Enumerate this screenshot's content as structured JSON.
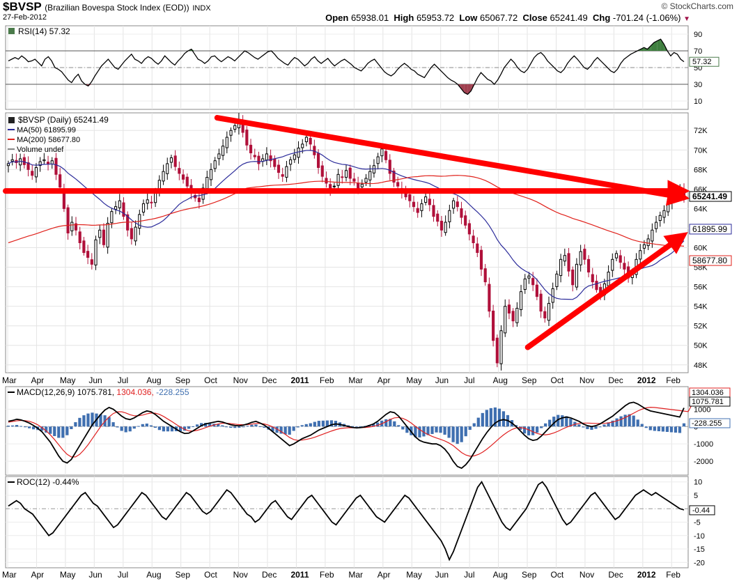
{
  "header": {
    "symbol": "$BVSP",
    "description": "(Brazilian Bovespa Stock Index (EOD))",
    "exchange": "INDX",
    "date": "27-Feb-2012",
    "brand": "© StockCharts.com",
    "open_label": "Open",
    "open": "65938.01",
    "high_label": "High",
    "high": "65953.72",
    "low_label": "Low",
    "low": "65067.72",
    "close_label": "Close",
    "close": "65241.49",
    "chg_label": "Chg",
    "chg": "-701.24 (-1.06%)"
  },
  "colors": {
    "candle_up": "#000000",
    "candle_down": "#b0103a",
    "ma50": "#2b2b9a",
    "ma200": "#e0201a",
    "annotation": "#ff0000",
    "macd_line": "#000000",
    "signal_line": "#e02020",
    "histogram": "#3f6fb0",
    "rsi_overbought_fill": "#3f7f3f",
    "rsi_oversold_fill": "#a04050"
  },
  "chart_data": [
    {
      "type": "line",
      "panel": "rsi",
      "label": "RSI(14) 57.32",
      "current_label": "57.32",
      "y_ticks": [
        "90",
        "70",
        "50",
        "30",
        "10"
      ],
      "ylim": [
        0,
        100
      ],
      "reference_lines": [
        70,
        50,
        30
      ],
      "series": [
        {
          "values": [
            58,
            60,
            62,
            60,
            64,
            61,
            57,
            58,
            60,
            56,
            52,
            60,
            63,
            58,
            50,
            48,
            45,
            40,
            35,
            32,
            38,
            42,
            34,
            30,
            28,
            33,
            40,
            46,
            52,
            56,
            60,
            55,
            50,
            48,
            53,
            58,
            62,
            66,
            60,
            58,
            55,
            60,
            63,
            61,
            57,
            54,
            58,
            64,
            60,
            56,
            53,
            58,
            62,
            67,
            70,
            72,
            66,
            60,
            58,
            55,
            58,
            63,
            64,
            60,
            57,
            60,
            63,
            61,
            58,
            62,
            66,
            70,
            68,
            65,
            62,
            60,
            63,
            66,
            69,
            70,
            66,
            61,
            58,
            55,
            53,
            58,
            62,
            60,
            56,
            52,
            55,
            60,
            63,
            58,
            55,
            58,
            61,
            56,
            52,
            55,
            58,
            60,
            57,
            54,
            50,
            48,
            46,
            50,
            55,
            58,
            60,
            55,
            50,
            45,
            42,
            40,
            43,
            48,
            52,
            55,
            52,
            48,
            46,
            42,
            40,
            38,
            44,
            50,
            54,
            50,
            46,
            42,
            38,
            35,
            33,
            30,
            25,
            20,
            18,
            22,
            30,
            38,
            44,
            40,
            36,
            34,
            30,
            35,
            42,
            50,
            55,
            60,
            56,
            50,
            46,
            44,
            48,
            55,
            62,
            66,
            68,
            64,
            58,
            54,
            50,
            46,
            44,
            48,
            55,
            60,
            64,
            60,
            55,
            50,
            48,
            52,
            58,
            62,
            58,
            54,
            50,
            46,
            44,
            48,
            55,
            60,
            63,
            66,
            68,
            70,
            72,
            74,
            72,
            76,
            80,
            82,
            84,
            78,
            70,
            64,
            68,
            66,
            60,
            57
          ]
        }
      ]
    },
    {
      "type": "candlestick",
      "panel": "price",
      "label": "$BVSP (Daily) 65241.49",
      "y_ticks": [
        "72K",
        "70K",
        "68K",
        "66K",
        "64K",
        "62K",
        "60K",
        "58K",
        "56K",
        "54K",
        "52K",
        "50K",
        "48K"
      ],
      "ylim": [
        47200,
        73800
      ],
      "x_ticks": [
        "Mar",
        "Apr",
        "May",
        "Jun",
        "Jul",
        "Aug",
        "Sep",
        "Oct",
        "Nov",
        "Dec",
        "2011",
        "Feb",
        "Mar",
        "Apr",
        "May",
        "Jun",
        "Jul",
        "Aug",
        "Sep",
        "Oct",
        "Nov",
        "Dec",
        "2012",
        "Feb"
      ],
      "x_ticks_bold": [
        "2011",
        "2012"
      ],
      "legend": [
        {
          "name": "MA(50) 61895.99",
          "color_key": "ma50"
        },
        {
          "name": "MA(200) 58677.80",
          "color_key": "ma200"
        },
        {
          "name": "Volume undef",
          "color_key": "volume"
        }
      ],
      "right_labels": [
        {
          "text": "65241.49",
          "value": 65241.49,
          "bold": true,
          "color_key": "candle_up"
        },
        {
          "text": "61895.99",
          "value": 61895.99,
          "bold": false,
          "color_key": "ma50"
        },
        {
          "text": "58677.80",
          "value": 58677.8,
          "bold": false,
          "color_key": "ma200"
        }
      ],
      "close": [
        68600,
        69000,
        68700,
        69100,
        68500,
        68000,
        67400,
        68200,
        68800,
        69000,
        68600,
        68900,
        67500,
        66200,
        64000,
        61500,
        62600,
        61800,
        60500,
        59500,
        59000,
        58300,
        60800,
        61800,
        60300,
        62500,
        63700,
        64200,
        64800,
        63200,
        61800,
        60900,
        62100,
        63400,
        64500,
        64900,
        64600,
        65700,
        66900,
        67800,
        68600,
        69200,
        68300,
        67600,
        67000,
        66300,
        65600,
        65100,
        64700,
        66100,
        67200,
        68000,
        68900,
        69600,
        70400,
        71300,
        72000,
        72500,
        73100,
        71800,
        70500,
        69700,
        69300,
        68600,
        69100,
        69600,
        68900,
        68300,
        67700,
        67300,
        68300,
        69000,
        69500,
        70200,
        70600,
        71300,
        70600,
        69500,
        68200,
        67300,
        66600,
        66000,
        66300,
        67500,
        67200,
        67900,
        67100,
        66800,
        66100,
        66500,
        67100,
        67800,
        68400,
        69300,
        70100,
        69000,
        67600,
        66700,
        66300,
        65700,
        65200,
        64800,
        64200,
        63600,
        64500,
        65200,
        64400,
        63200,
        62700,
        61800,
        62600,
        63800,
        64800,
        64200,
        63100,
        62300,
        61400,
        60500,
        59500,
        57800,
        56500,
        53500,
        50500,
        48200,
        51500,
        54000,
        53300,
        52500,
        53800,
        55500,
        56800,
        57100,
        56200,
        55000,
        53500,
        52800,
        54300,
        55800,
        57300,
        58800,
        59200,
        57600,
        56200,
        58300,
        59600,
        58800,
        57500,
        56500,
        55700,
        55300,
        56300,
        57500,
        58800,
        59400,
        58500,
        57800,
        56900,
        57500,
        58800,
        59700,
        60300,
        60900,
        61800,
        62600,
        63300,
        63800,
        64400,
        65100,
        65700,
        65900,
        65241
      ]
    },
    {
      "type": "line",
      "panel": "macd",
      "label": "MACD(12,26,9)",
      "values_text": {
        "macd": "1075.781",
        "signal": "1304.036",
        "hist": "-228.255"
      },
      "right_labels": [
        "1304.036",
        "1075.781",
        "-228.255"
      ],
      "y_ticks": [
        "1000",
        "0",
        "-1000",
        "-2000"
      ],
      "ylim": [
        -2800,
        2300
      ],
      "series": [
        {
          "name": "MACD",
          "color_key": "macd_line",
          "values": [
            300,
            350,
            420,
            380,
            300,
            200,
            60,
            -100,
            -300,
            -600,
            -900,
            -1300,
            -1700,
            -2000,
            -2100,
            -1900,
            -1500,
            -1100,
            -700,
            -300,
            100,
            400,
            700,
            950,
            1100,
            1000,
            800,
            600,
            450,
            400,
            500,
            650,
            800,
            900,
            850,
            700,
            500,
            300,
            150,
            0,
            -150,
            -300,
            -400,
            -380,
            -250,
            -100,
            50,
            150,
            200,
            250,
            300,
            260,
            180,
            100,
            60,
            40,
            80,
            150,
            240,
            300,
            200,
            80,
            -100,
            -300,
            -500,
            -700,
            -900,
            -1100,
            -1000,
            -850,
            -700,
            -600,
            -500,
            -350,
            -200,
            -100,
            0,
            100,
            150,
            120,
            60,
            0,
            -50,
            -80,
            -60,
            -20,
            60,
            150,
            300,
            500,
            700,
            850,
            800,
            600,
            300,
            0,
            -300,
            -600,
            -800,
            -900,
            -950,
            -1000,
            -1000,
            -1100,
            -1300,
            -1600,
            -2000,
            -2300,
            -2400,
            -2200,
            -1900,
            -1500,
            -1100,
            -700,
            -350,
            -50,
            200,
            350,
            400,
            350,
            200,
            0,
            -250,
            -500,
            -700,
            -800,
            -750,
            -550,
            -300,
            -50,
            200,
            400,
            500,
            550,
            500,
            400,
            300,
            150,
            50,
            0,
            50,
            150,
            300,
            450,
            600,
            800,
            1000,
            1200,
            1350,
            1400,
            1300,
            1150,
            1000,
            900,
            850,
            800,
            750,
            700,
            650,
            600,
            550,
            1076
          ]
        },
        {
          "name": "Signal",
          "color_key": "signal_line",
          "values": [
            250,
            290,
            330,
            350,
            340,
            300,
            220,
            100,
            -60,
            -250,
            -480,
            -750,
            -1050,
            -1350,
            -1600,
            -1750,
            -1750,
            -1600,
            -1350,
            -1050,
            -700,
            -350,
            0,
            300,
            550,
            750,
            850,
            850,
            780,
            680,
            620,
            620,
            660,
            730,
            780,
            770,
            700,
            580,
            430,
            280,
            120,
            -30,
            -160,
            -250,
            -260,
            -220,
            -150,
            -60,
            20,
            90,
            150,
            190,
            195,
            170,
            140,
            110,
            100,
            110,
            140,
            180,
            185,
            150,
            80,
            -20,
            -140,
            -290,
            -450,
            -630,
            -750,
            -800,
            -780,
            -740,
            -690,
            -620,
            -530,
            -440,
            -350,
            -260,
            -180,
            -120,
            -90,
            -70,
            -70,
            -70,
            -65,
            -55,
            -30,
            10,
            70,
            160,
            280,
            410,
            500,
            520,
            470,
            360,
            200,
            10,
            -170,
            -330,
            -460,
            -570,
            -660,
            -740,
            -830,
            -950,
            -1100,
            -1300,
            -1500,
            -1640,
            -1710,
            -1690,
            -1610,
            -1480,
            -1310,
            -1110,
            -900,
            -680,
            -480,
            -310,
            -170,
            -80,
            -60,
            -100,
            -190,
            -300,
            -400,
            -460,
            -480,
            -440,
            -370,
            -270,
            -150,
            -40,
            50,
            130,
            180,
            200,
            200,
            190,
            180,
            175,
            185,
            210,
            260,
            330,
            410,
            520,
            640,
            770,
            900,
            1000,
            1080,
            1110,
            1100,
            1070,
            1040,
            1010,
            980,
            950,
            920,
            890,
            860,
            1304
          ]
        },
        {
          "name": "Histogram",
          "color_key": "histogram",
          "type": "bar"
        }
      ]
    },
    {
      "type": "line",
      "panel": "roc",
      "label": "ROC(12) -0.44%",
      "current_label": "-0.44",
      "y_ticks": [
        "10",
        "5",
        "0",
        "-5",
        "-10",
        "-15",
        "-20"
      ],
      "ylim": [
        -22,
        12
      ],
      "x_ticks": [
        "Mar",
        "Apr",
        "May",
        "Jun",
        "Jul",
        "Aug",
        "Sep",
        "Oct",
        "Nov",
        "Dec",
        "2011",
        "Feb",
        "Mar",
        "Apr",
        "May",
        "Jun",
        "Jul",
        "Aug",
        "Sep",
        "Oct",
        "Nov",
        "Dec",
        "2012",
        "Feb"
      ],
      "x_ticks_bold": [
        "2011",
        "2012"
      ],
      "series": [
        {
          "values": [
            1,
            2,
            3,
            2,
            0,
            -1,
            -2,
            -4,
            -6,
            -8,
            -10,
            -9,
            -7,
            -5,
            -3,
            -1,
            1,
            3,
            5,
            6,
            4,
            2,
            1,
            -1,
            -3,
            -5,
            -7,
            -6,
            -4,
            -2,
            0,
            2,
            4,
            6,
            5,
            3,
            1,
            -1,
            -3,
            -4,
            -2,
            0,
            2,
            4,
            6,
            5,
            3,
            1,
            -1,
            -2,
            -1,
            1,
            3,
            5,
            7,
            6,
            4,
            2,
            0,
            -2,
            -3,
            -5,
            -4,
            -2,
            0,
            2,
            3,
            1,
            -1,
            -3,
            -4,
            -2,
            0,
            2,
            4,
            5,
            3,
            1,
            -1,
            -3,
            -5,
            -6,
            -4,
            -2,
            0,
            2,
            4,
            5,
            3,
            1,
            -1,
            -3,
            -4,
            -5,
            -3,
            -1,
            1,
            3,
            5,
            4,
            2,
            0,
            -2,
            -4,
            -6,
            -8,
            -10,
            -12,
            -15,
            -19,
            -16,
            -12,
            -8,
            -4,
            0,
            4,
            8,
            10,
            7,
            4,
            1,
            -2,
            -5,
            -7,
            -8,
            -6,
            -4,
            -2,
            0,
            3,
            6,
            9,
            10,
            8,
            5,
            2,
            -1,
            -4,
            -6,
            -5,
            -3,
            -1,
            1,
            3,
            5,
            6,
            4,
            2,
            0,
            -2,
            -4,
            -3,
            -1,
            1,
            3,
            5,
            6,
            7,
            6,
            5,
            6,
            5,
            4,
            3,
            2,
            1,
            0,
            -0.44
          ]
        }
      ]
    }
  ],
  "annotations": [
    {
      "type": "arrow",
      "from": [
        0,
        65800
      ],
      "to": [
        1,
        65800
      ]
    },
    {
      "type": "arrow",
      "from": [
        0.31,
        73300
      ],
      "to": [
        1,
        65200
      ]
    },
    {
      "type": "arrow",
      "from": [
        0.765,
        49800
      ],
      "to": [
        1,
        61000
      ]
    }
  ]
}
